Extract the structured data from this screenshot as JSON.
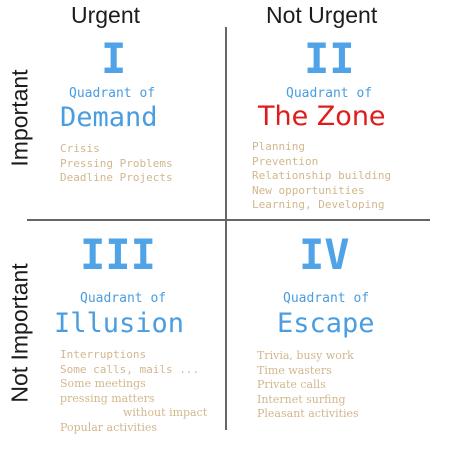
{
  "columns": {
    "urgent": "Urgent",
    "not_urgent": "Not Urgent"
  },
  "rows": {
    "important": "Important",
    "not_important": "Not Important"
  },
  "quadrants": [
    {
      "numeral": "I",
      "subtitle": "Quadrant of",
      "name": "Demand",
      "items": [
        "Crisis",
        "Pressing Problems",
        "Deadline Projects"
      ]
    },
    {
      "numeral": "II",
      "subtitle": "Quadrant of",
      "name": "The Zone",
      "name_color": "#e01b1b",
      "items": [
        "Planning",
        "Prevention",
        "Relationship building",
        "New opportunities",
        "Learning, Developing"
      ]
    },
    {
      "numeral": "III",
      "subtitle": "Quadrant of",
      "name": "Illusion",
      "items": [
        "Interruptions",
        "Some calls, mails ...",
        "Some meetings",
        "pressing matters",
        "without impact",
        "Popular activities"
      ]
    },
    {
      "numeral": "IV",
      "subtitle": "Quadrant of",
      "name": "Escape",
      "items": [
        "Trivia, busy work",
        "Time wasters",
        "Private calls",
        "Internet surfing",
        "Pleasant activities"
      ]
    }
  ],
  "colors": {
    "numeral": "#4fa3e6",
    "name": "#4a9de0",
    "items": "#d2b78e",
    "accent": "#e01b1b",
    "axis": "#666666"
  }
}
